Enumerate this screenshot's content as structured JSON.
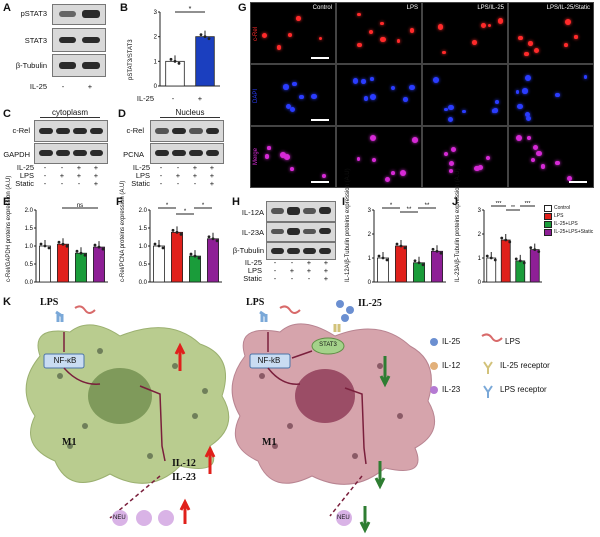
{
  "panel_letters": {
    "A": "A",
    "B": "B",
    "C": "C",
    "D": "D",
    "E": "E",
    "F": "F",
    "G": "G",
    "H": "H",
    "I": "I",
    "J": "J",
    "K": "K"
  },
  "panelA": {
    "rows": [
      "pSTAT3",
      "STAT3",
      "β-Tubulin"
    ],
    "cond_label": "IL-25",
    "signs": [
      "-",
      "+"
    ]
  },
  "panelB": {
    "ylabel": "pSTAT3/STAT3",
    "yticks": [
      "0",
      "1",
      "2",
      "3"
    ],
    "cond_label": "IL-25",
    "signs": [
      "-",
      "+"
    ],
    "sig": "*"
  },
  "panelC": {
    "title": "cytoplasm",
    "rows": [
      "c-Rel",
      "GAPDH"
    ]
  },
  "panelD": {
    "title": "Nucleus",
    "rows": [
      "c-Rel",
      "PCNA"
    ]
  },
  "treat_labels": [
    "IL-25",
    "LPS",
    "Static"
  ],
  "treat_signs": [
    [
      "-",
      "-",
      "+",
      "+"
    ],
    [
      "-",
      "+",
      "+",
      "+"
    ],
    [
      "-",
      "-",
      "-",
      "+"
    ]
  ],
  "panelE": {
    "ylabel": "c-Rel/GAPDH proteins expression (A.U)",
    "yticks": [
      "0.0",
      "0.5",
      "1.0",
      "1.5",
      "2.0"
    ],
    "sig": "ns"
  },
  "panelF": {
    "ylabel": "c-Rel/PCNA proteins expression (A.U)",
    "yticks": [
      "0.0",
      "0.5",
      "1.0",
      "1.5",
      "2.0"
    ],
    "sig": [
      "*",
      "*",
      "*"
    ]
  },
  "panelH": {
    "rows": [
      "IL-12A",
      "IL-23A",
      "β-Tubulin"
    ],
    "labels": [
      "IL-25",
      "LPS",
      "Static"
    ]
  },
  "panelI": {
    "ylabel": "IL-12A/β-Tubulin proteins expression (A.U)",
    "yticks": [
      "0",
      "1",
      "2",
      "3"
    ],
    "sig": [
      "*",
      "**",
      "**"
    ]
  },
  "panelJ": {
    "ylabel": "IL-23A/β-Tubulin proteins expression (A.U)",
    "yticks": [
      "0",
      "1",
      "2",
      "3"
    ],
    "sig": [
      "***",
      "**",
      "***"
    ],
    "legend": [
      "Control",
      "LPS",
      "IL-25+LPS",
      "IL-25+LPS+Static"
    ]
  },
  "panelG": {
    "cols": [
      "Control",
      "LPS",
      "LPS/IL-25",
      "LPS/IL-25/Static"
    ],
    "rows": [
      "c-Rel",
      "DAPI",
      "Merge"
    ]
  },
  "panelK": {
    "left": {
      "lps": "LPS",
      "nfkb": "NF-κB",
      "cell": "M1",
      "il12": "IL-12",
      "il23": "IL-23",
      "neu": "NEU"
    },
    "right": {
      "lps": "LPS",
      "il25": "IL-25",
      "stat3": "STAT3",
      "nfkb": "NF-kB",
      "cell": "M1",
      "neu": "NEU"
    },
    "legend": [
      "IL-25",
      "LPS",
      "IL-12",
      "IL-25 receptor",
      "IL-23",
      "LPS receptor"
    ]
  },
  "colors": {
    "control": "#ffffff",
    "lps": "#e0201b",
    "il25lps": "#1a9c3a",
    "static": "#8e1f96",
    "b_il25": "#1b3fbf",
    "cell_left": "#b9cc8f",
    "cell_right": "#d6a4ac",
    "nuc_left": "#7f9a5b",
    "nuc_right": "#9b4d66"
  },
  "chart_data": [
    {
      "type": "bar",
      "panel": "B",
      "categories": [
        "-",
        "+"
      ],
      "values": [
        1.0,
        2.0
      ],
      "ylabel": "pSTAT3/STAT3",
      "ylim": [
        0,
        3
      ],
      "colors": [
        "#ffffff",
        "#1b3fbf"
      ]
    },
    {
      "type": "bar",
      "panel": "E",
      "categories": [
        "Control",
        "LPS",
        "IL-25+LPS",
        "IL-25+LPS+Static"
      ],
      "values": [
        1.0,
        1.05,
        0.8,
        0.97
      ],
      "ylabel": "c-Rel/GAPDH proteins expression (A.U)",
      "ylim": [
        0,
        2
      ]
    },
    {
      "type": "bar",
      "panel": "F",
      "categories": [
        "Control",
        "LPS",
        "IL-25+LPS",
        "IL-25+LPS+Static"
      ],
      "values": [
        1.0,
        1.38,
        0.72,
        1.2
      ],
      "ylabel": "c-Rel/PCNA proteins expression (A.U)",
      "ylim": [
        0,
        2
      ]
    },
    {
      "type": "bar",
      "panel": "I",
      "categories": [
        "Control",
        "LPS",
        "IL-25+LPS",
        "IL-25+LPS+Static"
      ],
      "values": [
        1.0,
        1.5,
        0.8,
        1.28
      ],
      "ylabel": "IL-12A/β-Tubulin proteins expression (A.U)",
      "ylim": [
        0,
        3
      ]
    },
    {
      "type": "bar",
      "panel": "J",
      "categories": [
        "Control",
        "LPS",
        "IL-25+LPS",
        "IL-25+LPS+Static"
      ],
      "values": [
        1.0,
        1.75,
        0.88,
        1.35
      ],
      "ylabel": "IL-23A/β-Tubulin proteins expression (A.U)",
      "ylim": [
        0,
        2.5
      ]
    }
  ]
}
